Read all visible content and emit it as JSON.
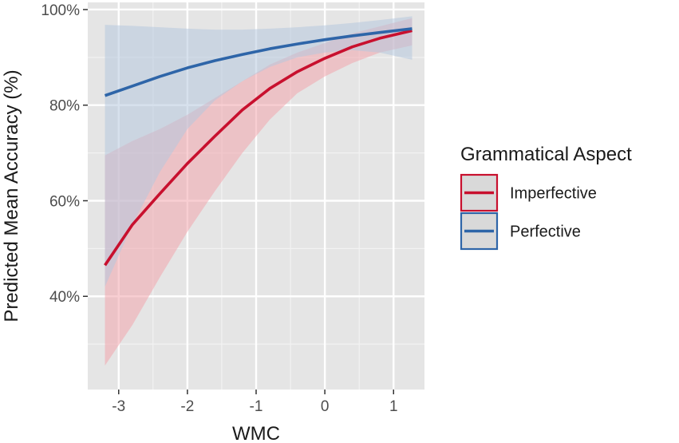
{
  "chart_data": {
    "type": "line",
    "xlabel": "WMC",
    "ylabel": "Predicted Mean Accuracy (%)",
    "xlim": [
      -3.45,
      1.45
    ],
    "ylim": [
      20.5,
      101.5
    ],
    "x_ticks": [
      -3,
      -2,
      -1,
      0,
      1
    ],
    "x_tick_labels": [
      "-3",
      "-2",
      "-1",
      "0",
      "1"
    ],
    "y_ticks": [
      40,
      60,
      80,
      100
    ],
    "y_tick_labels": [
      "40%",
      "60%",
      "80%",
      "100%"
    ],
    "grid": true,
    "legend": {
      "title": "Grammatical Aspect",
      "position": "right"
    },
    "series": [
      {
        "name": "Imperfective",
        "color": "#c8102e",
        "fill_color": "#f3a6ad",
        "x": [
          -3.2,
          -2.8,
          -2.4,
          -2.0,
          -1.6,
          -1.2,
          -0.8,
          -0.4,
          0.0,
          0.4,
          0.8,
          1.27
        ],
        "y": [
          46.5,
          55.0,
          61.5,
          67.8,
          73.5,
          79.0,
          83.5,
          87.0,
          89.8,
          92.2,
          94.0,
          95.6
        ],
        "lower": [
          25.5,
          34.0,
          44.0,
          53.5,
          62.0,
          70.0,
          77.0,
          82.5,
          86.0,
          88.8,
          91.0,
          92.5
        ],
        "upper": [
          69.5,
          72.5,
          75.0,
          78.0,
          81.5,
          85.0,
          88.5,
          91.0,
          93.0,
          95.0,
          96.5,
          98.2
        ]
      },
      {
        "name": "Perfective",
        "color": "#2e65a8",
        "fill_color": "#b7c9de",
        "x": [
          -3.2,
          -2.8,
          -2.4,
          -2.0,
          -1.6,
          -1.2,
          -0.8,
          -0.4,
          0.0,
          0.4,
          0.8,
          1.27
        ],
        "y": [
          82.0,
          84.0,
          86.0,
          87.8,
          89.3,
          90.6,
          91.8,
          92.8,
          93.7,
          94.5,
          95.2,
          96.0
        ],
        "lower": [
          42.0,
          55.0,
          66.0,
          75.0,
          81.0,
          85.0,
          88.0,
          90.0,
          91.0,
          91.5,
          91.0,
          89.5
        ],
        "upper": [
          96.8,
          96.6,
          96.3,
          96.0,
          95.8,
          95.8,
          96.0,
          96.3,
          96.7,
          97.2,
          97.8,
          98.6
        ]
      }
    ]
  }
}
